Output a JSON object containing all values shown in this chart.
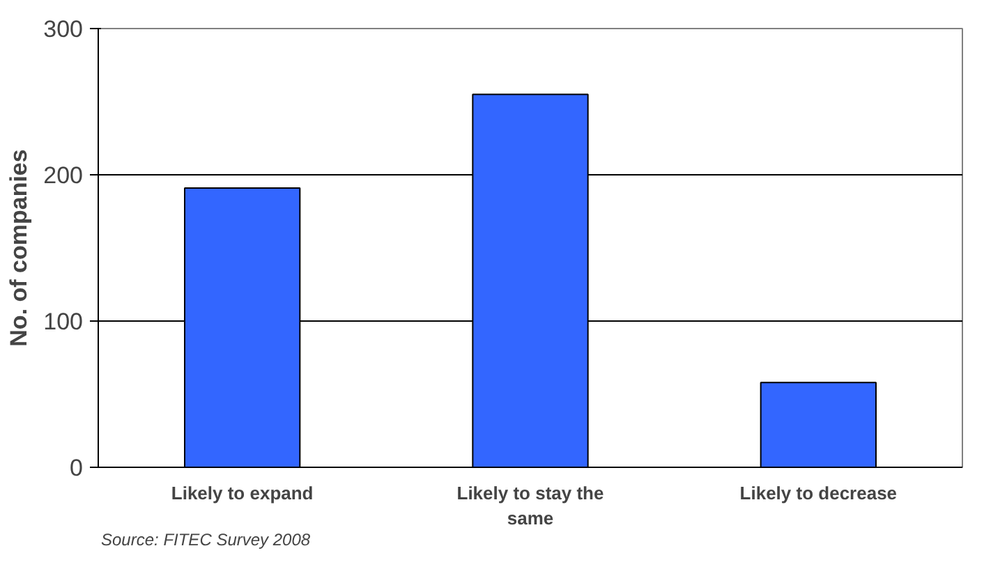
{
  "chart_data": {
    "type": "bar",
    "ylabel": "No. of companies",
    "categories": [
      "Likely to expand",
      "Likely to stay the same",
      "Likely to decrease"
    ],
    "values": [
      191,
      255,
      58
    ],
    "color": "#3366ff",
    "ylim": [
      0,
      300
    ],
    "yticks": [
      0,
      100,
      200,
      300
    ],
    "grid": "y",
    "annotations": [
      "Source: FITEC Survey 2008"
    ]
  }
}
